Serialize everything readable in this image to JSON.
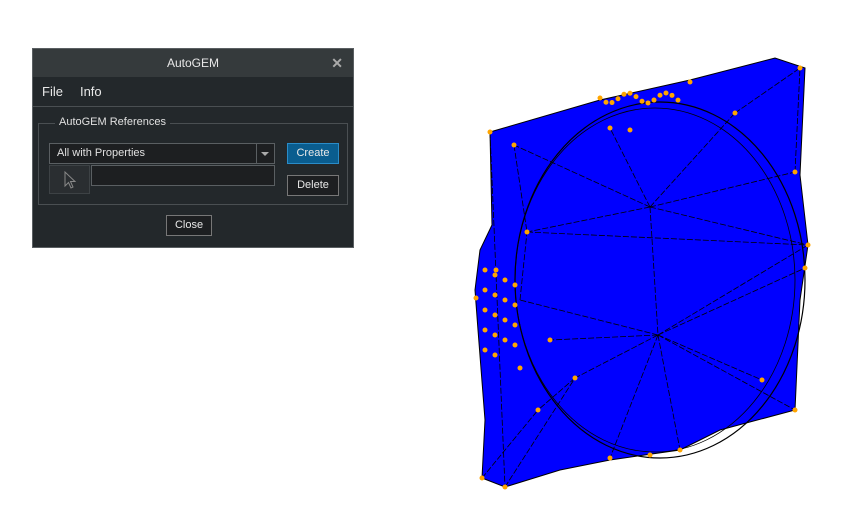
{
  "dialog": {
    "title": "AutoGEM",
    "menu": [
      "File",
      "Info"
    ],
    "group_label": "AutoGEM References",
    "filter_select": {
      "value": "All with Properties"
    },
    "reference_input": {
      "value": ""
    },
    "buttons": {
      "create": "Create",
      "delete": "Delete",
      "close": "Close"
    },
    "icons": {
      "close": "close-icon",
      "pick": "cursor-arrow-icon",
      "dropdown": "chevron-down-icon"
    }
  },
  "viewport": {
    "model_color": "#0000ff",
    "edge_color": "#000000",
    "node_color": "#ffa500"
  }
}
